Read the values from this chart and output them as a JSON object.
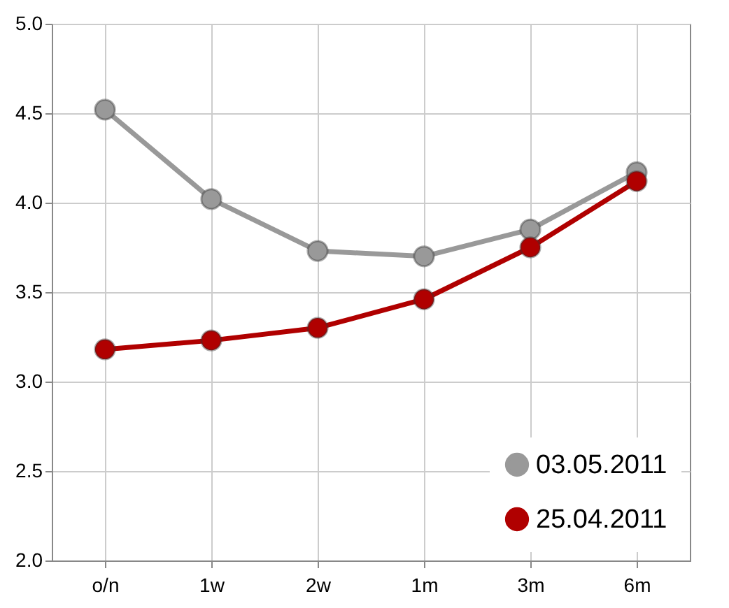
{
  "chart_data": {
    "type": "line",
    "categories": [
      "o/n",
      "1w",
      "2w",
      "1m",
      "3m",
      "6m"
    ],
    "series": [
      {
        "name": "03.05.2011",
        "color": "#999999",
        "values": [
          4.52,
          4.02,
          3.73,
          3.7,
          3.85,
          4.17
        ]
      },
      {
        "name": "25.04.2011",
        "color": "#b00000",
        "values": [
          3.18,
          3.23,
          3.3,
          3.46,
          3.75,
          4.12
        ]
      }
    ],
    "ylim": [
      2.0,
      5.0
    ],
    "yticks": [
      {
        "value": 2.0,
        "label": "2.0"
      },
      {
        "value": 2.5,
        "label": "2.5"
      },
      {
        "value": 3.0,
        "label": "3.0"
      },
      {
        "value": 3.5,
        "label": "3.5"
      },
      {
        "value": 4.0,
        "label": "4.0"
      },
      {
        "value": 4.5,
        "label": "4.5"
      },
      {
        "value": 5.0,
        "label": "5.0"
      }
    ],
    "grid": true,
    "legend": "bottom right",
    "marker": "circle",
    "line_style": "solid"
  }
}
